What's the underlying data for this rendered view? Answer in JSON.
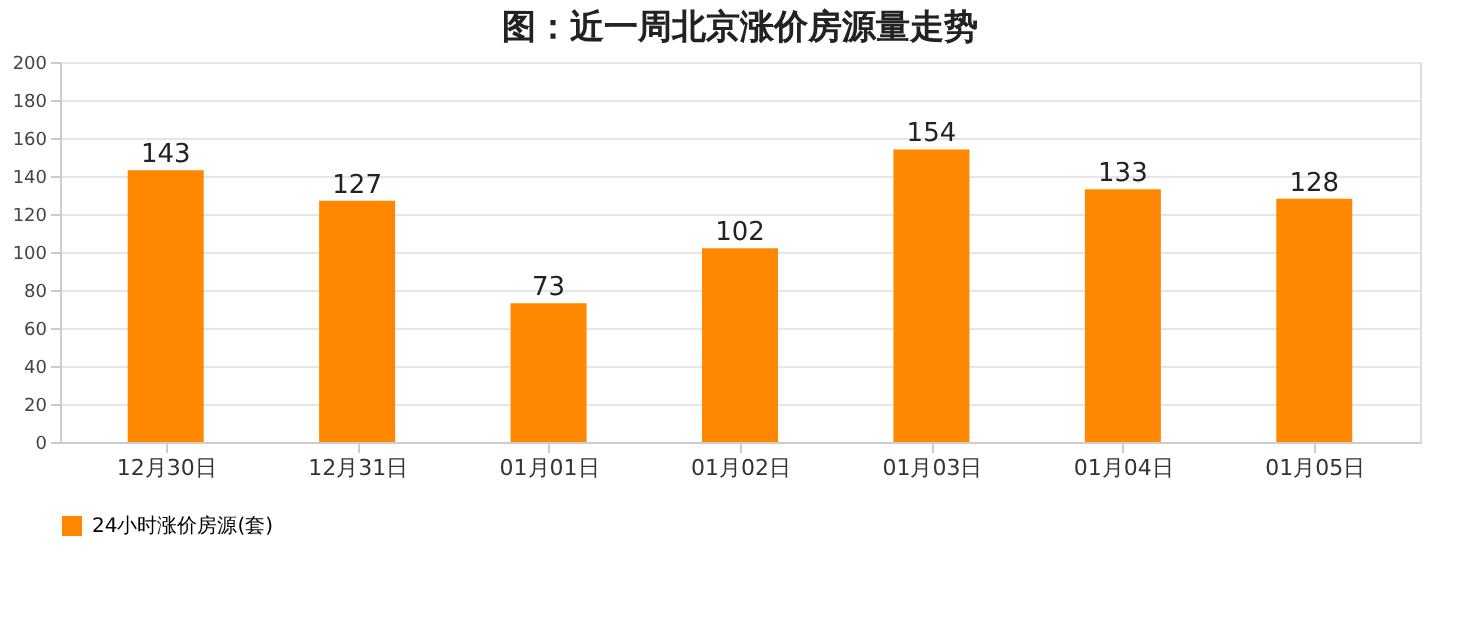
{
  "chart_data": {
    "type": "bar",
    "title": "图：近一周北京涨价房源量走势",
    "categories": [
      "12月30日",
      "12月31日",
      "01月01日",
      "01月02日",
      "01月03日",
      "01月04日",
      "01月05日"
    ],
    "series": [
      {
        "name": "24小时涨价房源(套)",
        "color": "#ff8800",
        "values": [
          143,
          127,
          73,
          102,
          154,
          133,
          128
        ]
      }
    ],
    "ylim": [
      0,
      200
    ],
    "yticks": [
      0,
      20,
      40,
      60,
      80,
      100,
      120,
      140,
      160,
      180,
      200
    ],
    "grid": "y",
    "legend": "bottom",
    "data_labels": true
  }
}
